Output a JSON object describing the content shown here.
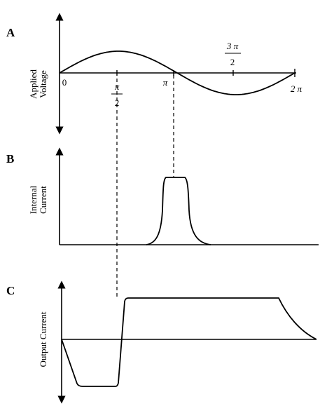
{
  "panels": {
    "a": {
      "letter": "A",
      "axis_title_line1": "Applied",
      "axis_title_line2": "Voltage"
    },
    "b": {
      "letter": "B",
      "axis_title_line1": "Internal",
      "axis_title_line2": "Current"
    },
    "c": {
      "letter": "C",
      "axis_title": "Output Current"
    }
  },
  "ticks": {
    "zero": "0",
    "half_pi_num": "π",
    "half_pi_den": "2",
    "pi": "π",
    "three_half_pi_num": "3 π",
    "three_half_pi_den": "2",
    "two_pi": "2 π"
  }
}
